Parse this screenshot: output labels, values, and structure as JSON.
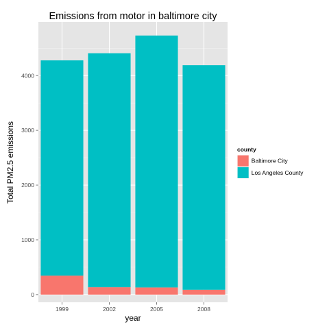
{
  "chart_data": {
    "type": "bar",
    "stacked": true,
    "title": "Emissions from motor in baltimore city",
    "xlabel": "year",
    "ylabel": "Total PM2.5 emissions",
    "categories": [
      "1999",
      "2002",
      "2005",
      "2008"
    ],
    "series": [
      {
        "name": "Baltimore City",
        "color": "#F8766D",
        "values": [
          346.8,
          134.3,
          130.4,
          88.3
        ]
      },
      {
        "name": "Los Angeles County",
        "color": "#00BFC4",
        "values": [
          3931.1,
          4274.0,
          4601.4,
          4101.3
        ]
      }
    ],
    "ylim": [
      -140,
      4980
    ],
    "yticks": [
      0,
      1000,
      2000,
      3000,
      4000
    ],
    "ytick_labels": [
      "0",
      "1000",
      "2000",
      "3000",
      "4000"
    ],
    "grid": true,
    "panel_background": "#E5E5E5",
    "legend": {
      "title": "county",
      "placement": "right"
    }
  }
}
